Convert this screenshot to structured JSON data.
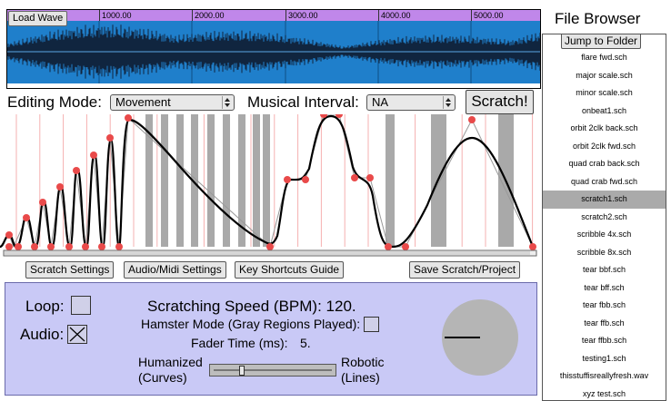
{
  "waveform": {
    "load_button": "Load Wave",
    "ruler_ticks": [
      "1000.00",
      "2000.00",
      "3000.00",
      "4000.00",
      "5000.00"
    ]
  },
  "editing": {
    "mode_label": "Editing Mode:",
    "mode_value": "Movement",
    "interval_label": "Musical Interval:",
    "interval_value": "NA",
    "scratch_button": "Scratch!"
  },
  "buttons": {
    "scratch_settings": "Scratch Settings",
    "audio_midi": "Audio/Midi Settings",
    "shortcuts": "Key Shortcuts Guide",
    "save": "Save Scratch/Project"
  },
  "settings": {
    "loop_label": "Loop:",
    "loop_checked": false,
    "audio_label": "Audio:",
    "audio_checked": true,
    "speed_text": "Scratching Speed (BPM): 120.",
    "hamster_text": "Hamster Mode (Gray Regions Played):",
    "hamster_checked": false,
    "fader_label": "Fader Time (ms):",
    "fader_value": "5.",
    "humanized_line1": "Humanized",
    "humanized_line2": "(Curves)",
    "robotic_line1": "Robotic",
    "robotic_line2": "(Lines)",
    "slider_fraction": 0.24
  },
  "file_browser": {
    "title": "File Browser",
    "jump_button": "Jump to Folder",
    "files": [
      "flare fwd.sch",
      "major scale.sch",
      "minor scale.sch",
      "onbeat1.sch",
      "orbit 2clk back.sch",
      "orbit 2clk fwd.sch",
      "quad crab back.sch",
      "quad crab fwd.sch",
      "scratch1.sch",
      "scratch2.sch",
      "scribble 4x.sch",
      "scribble 8x.sch",
      "tear bbf.sch",
      "tear bff.sch",
      "tear fbb.sch",
      "tear ffb.sch",
      "tear ffbb.sch",
      "testing1.sch",
      "thisstuffisreallyfresh.wav",
      "xyz test.sch"
    ],
    "selected_index": 8
  },
  "colors": {
    "ruler": "#c087ea",
    "wave_bg": "#1f7fcb",
    "gray_region": "#a9a9a9",
    "guide_line": "#f6b0b0",
    "control_point": "#e94a4a",
    "panel_bg": "#c9c9f6"
  }
}
